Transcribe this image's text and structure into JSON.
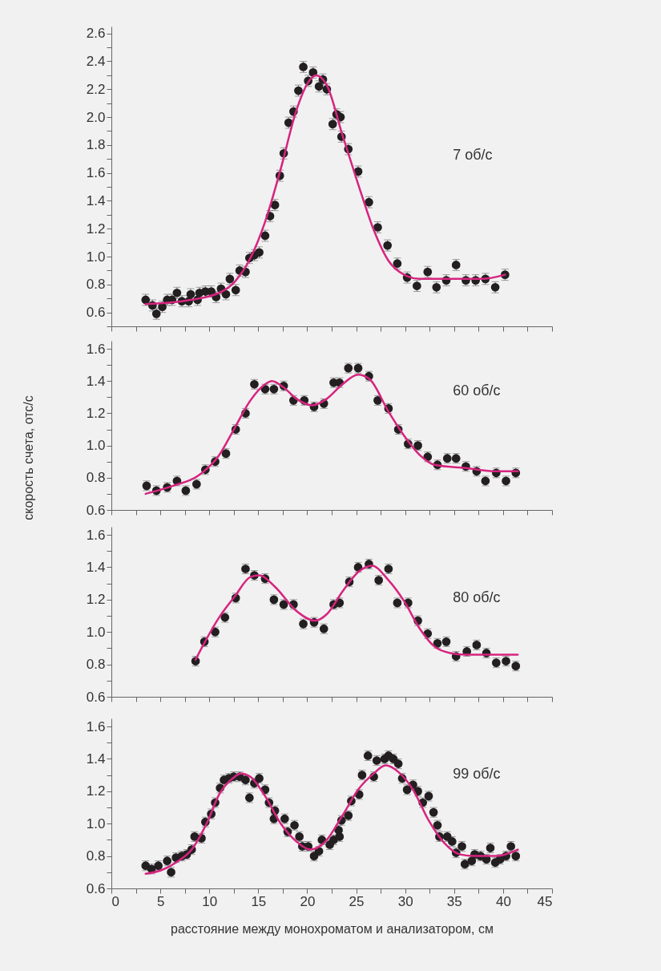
{
  "chart_data": [
    {
      "type": "scatter",
      "annotations": [
        "7 об/с"
      ],
      "tick_labels": "y",
      "xlim": [
        0,
        45
      ],
      "ylim": [
        0.5,
        2.65
      ],
      "xticks": [
        0,
        {
          "value": 2.5,
          "label": null
        },
        5,
        {
          "value": 7.5,
          "label": null
        },
        10,
        {
          "value": 12.5,
          "label": null
        },
        15,
        {
          "value": 17.5,
          "label": null
        },
        20,
        {
          "value": 22.5,
          "label": null
        },
        25,
        {
          "value": 27.5,
          "label": null
        },
        30,
        {
          "value": 32.5,
          "label": null
        },
        35,
        {
          "value": 37.5,
          "label": null
        },
        40,
        {
          "value": 42.5,
          "label": null
        },
        45
      ],
      "yticks": [
        {
          "value": 0.5,
          "label": null
        },
        0.6,
        {
          "value": 0.7,
          "label": null
        },
        0.8,
        {
          "value": 0.9,
          "label": null
        },
        {
          "value": 1,
          "label": "1.0"
        },
        {
          "value": 1.1,
          "label": null
        },
        1.2,
        {
          "value": 1.3,
          "label": null
        },
        1.4,
        {
          "value": 1.5,
          "label": null
        },
        1.6,
        {
          "value": 1.7,
          "label": null
        },
        1.8,
        {
          "value": 1.9,
          "label": null
        },
        {
          "value": 2,
          "label": "2.0"
        },
        {
          "value": 2.1,
          "label": null
        },
        2.2,
        {
          "value": 2.3,
          "label": null
        },
        2.4,
        {
          "value": 2.5,
          "label": null
        },
        2.6
      ],
      "series": [
        {
          "type": "scatter",
          "marker": "circle",
          "color": "#231f20",
          "x": [
            3.5,
            4.2,
            4.6,
            5.2,
            5.7,
            6.2,
            6.7,
            7.2,
            7.9,
            8.1,
            8.8,
            9.0,
            9.6,
            10.2,
            10.7,
            11.2,
            11.7,
            12.1,
            12.7,
            13.1,
            13.7,
            14.1,
            14.6,
            15.1,
            15.7,
            16.2,
            16.7,
            17.2,
            17.6,
            18.1,
            18.6,
            19.1,
            19.6,
            20.1,
            20.6,
            21.2,
            21.6,
            22.0,
            22.6,
            23.0,
            23.4,
            23.5,
            24.2,
            25.2,
            26.3,
            27.2,
            28.2,
            29.2,
            30.2,
            31.2,
            32.3,
            33.2,
            34.2,
            35.2,
            36.2,
            37.2,
            38.2,
            39.2,
            40.2
          ],
          "values": [
            0.69,
            0.65,
            0.59,
            0.64,
            0.69,
            0.69,
            0.74,
            0.68,
            0.68,
            0.73,
            0.69,
            0.74,
            0.75,
            0.75,
            0.71,
            0.77,
            0.73,
            0.84,
            0.76,
            0.9,
            0.89,
            0.99,
            1.01,
            1.03,
            1.15,
            1.29,
            1.37,
            1.58,
            1.74,
            1.96,
            2.04,
            2.19,
            2.36,
            2.26,
            2.32,
            2.22,
            2.27,
            2.2,
            1.95,
            2.02,
            2.0,
            1.86,
            1.77,
            1.61,
            1.39,
            1.21,
            1.08,
            0.95,
            0.85,
            0.79,
            0.89,
            0.78,
            0.83,
            0.94,
            0.83,
            0.83,
            0.84,
            0.78,
            0.87
          ],
          "errors": [
            0.04,
            0.04,
            0.04,
            0.04,
            0.04,
            0.04,
            0.04,
            0.04,
            0.04,
            0.04,
            0.04,
            0.04,
            0.04,
            0.04,
            0.04,
            0.04,
            0.04,
            0.04,
            0.04,
            0.04,
            0.04,
            0.04,
            0.04,
            0.04,
            0.04,
            0.04,
            0.04,
            0.04,
            0.04,
            0.04,
            0.04,
            0.04,
            0.04,
            0.04,
            0.04,
            0.04,
            0.04,
            0.04,
            0.04,
            0.04,
            0.04,
            0.04,
            0.04,
            0.04,
            0.04,
            0.04,
            0.04,
            0.04,
            0.04,
            0.04,
            0.04,
            0.04,
            0.04,
            0.04,
            0.04,
            0.04,
            0.04,
            0.04,
            0.04
          ]
        },
        {
          "type": "line",
          "color": "#d6247f",
          "x": [
            3.5,
            7.2,
            11.0,
            12.6,
            14.2,
            15.7,
            17.3,
            18.9,
            20.1,
            20.9,
            22.0,
            23.6,
            25.2,
            26.8,
            28.3,
            29.9,
            31.5,
            34.6,
            37.8,
            40.2
          ],
          "values": [
            0.66,
            0.68,
            0.74,
            0.82,
            0.99,
            1.25,
            1.63,
            2.05,
            2.25,
            2.3,
            2.23,
            1.87,
            1.52,
            1.19,
            0.97,
            0.87,
            0.84,
            0.84,
            0.84,
            0.87
          ]
        }
      ]
    },
    {
      "type": "scatter",
      "annotations": [
        "60 об/с"
      ],
      "ylabel": "скорость счета, отс/с",
      "tick_labels": "y",
      "xlim": [
        0,
        45
      ],
      "ylim": [
        0.6,
        1.65
      ],
      "xticks": [
        0,
        {
          "value": 2.5,
          "label": null
        },
        5,
        {
          "value": 7.5,
          "label": null
        },
        10,
        {
          "value": 12.5,
          "label": null
        },
        15,
        {
          "value": 17.5,
          "label": null
        },
        20,
        {
          "value": 22.5,
          "label": null
        },
        25,
        {
          "value": 27.5,
          "label": null
        },
        30,
        {
          "value": 32.5,
          "label": null
        },
        35,
        {
          "value": 37.5,
          "label": null
        },
        40,
        {
          "value": 42.5,
          "label": null
        },
        45
      ],
      "yticks": [
        0.6,
        {
          "value": 0.7,
          "label": null
        },
        0.8,
        {
          "value": 0.9,
          "label": null
        },
        {
          "value": 1,
          "label": "1.0"
        },
        {
          "value": 1.1,
          "label": null
        },
        1.2,
        {
          "value": 1.3,
          "label": null
        },
        1.4,
        {
          "value": 1.5,
          "label": null
        },
        1.6
      ],
      "series": [
        {
          "type": "scatter",
          "marker": "circle",
          "color": "#231f20",
          "x": [
            3.6,
            4.6,
            5.7,
            6.7,
            7.6,
            8.7,
            9.6,
            10.6,
            11.7,
            12.7,
            13.7,
            14.6,
            15.7,
            16.6,
            17.6,
            18.6,
            19.7,
            20.7,
            21.7,
            22.7,
            23.3,
            24.2,
            25.2,
            26.3,
            27.2,
            28.3,
            29.3,
            30.3,
            31.3,
            32.3,
            33.3,
            34.3,
            35.2,
            36.2,
            37.3,
            38.2,
            39.3,
            40.3,
            41.3
          ],
          "values": [
            0.75,
            0.72,
            0.74,
            0.78,
            0.72,
            0.76,
            0.85,
            0.9,
            0.95,
            1.1,
            1.2,
            1.38,
            1.35,
            1.35,
            1.37,
            1.28,
            1.28,
            1.24,
            1.26,
            1.39,
            1.39,
            1.48,
            1.48,
            1.43,
            1.28,
            1.23,
            1.1,
            1.01,
            1.0,
            0.93,
            0.88,
            0.92,
            0.92,
            0.87,
            0.84,
            0.78,
            0.83,
            0.78,
            0.83
          ],
          "errors": [
            0.03,
            0.03,
            0.03,
            0.03,
            0.03,
            0.03,
            0.03,
            0.03,
            0.03,
            0.03,
            0.03,
            0.03,
            0.03,
            0.03,
            0.03,
            0.03,
            0.03,
            0.03,
            0.03,
            0.03,
            0.03,
            0.03,
            0.03,
            0.03,
            0.03,
            0.03,
            0.03,
            0.03,
            0.03,
            0.03,
            0.03,
            0.03,
            0.03,
            0.03,
            0.03,
            0.03,
            0.03,
            0.03,
            0.03
          ]
        },
        {
          "type": "line",
          "color": "#d6247f",
          "x": [
            3.5,
            6.3,
            8.8,
            11.0,
            12.6,
            14.2,
            15.7,
            16.4,
            17.6,
            18.9,
            20.5,
            22.0,
            23.6,
            25.2,
            26.4,
            28.3,
            29.9,
            31.5,
            33.0,
            36.2,
            39.3,
            41.5
          ],
          "values": [
            0.7,
            0.75,
            0.81,
            0.94,
            1.11,
            1.28,
            1.38,
            1.4,
            1.36,
            1.29,
            1.25,
            1.29,
            1.38,
            1.44,
            1.41,
            1.21,
            1.06,
            0.94,
            0.88,
            0.86,
            0.84,
            0.84
          ]
        }
      ]
    },
    {
      "type": "scatter",
      "annotations": [
        "80 об/с"
      ],
      "tick_labels": "y",
      "xlim": [
        0,
        45
      ],
      "ylim": [
        0.6,
        1.65
      ],
      "xticks": [
        0,
        {
          "value": 2.5,
          "label": null
        },
        5,
        {
          "value": 7.5,
          "label": null
        },
        10,
        {
          "value": 12.5,
          "label": null
        },
        15,
        {
          "value": 17.5,
          "label": null
        },
        20,
        {
          "value": 22.5,
          "label": null
        },
        25,
        {
          "value": 27.5,
          "label": null
        },
        30,
        {
          "value": 32.5,
          "label": null
        },
        35,
        {
          "value": 37.5,
          "label": null
        },
        40,
        {
          "value": 42.5,
          "label": null
        },
        45
      ],
      "yticks": [
        0.6,
        {
          "value": 0.7,
          "label": null
        },
        0.8,
        {
          "value": 0.9,
          "label": null
        },
        {
          "value": 1,
          "label": "1.0"
        },
        {
          "value": 1.1,
          "label": null
        },
        1.2,
        {
          "value": 1.3,
          "label": null
        },
        1.4,
        {
          "value": 1.5,
          "label": null
        },
        1.6
      ],
      "series": [
        {
          "type": "scatter",
          "marker": "circle",
          "color": "#231f20",
          "x": [
            8.6,
            9.5,
            10.6,
            11.6,
            12.7,
            13.7,
            14.6,
            15.7,
            16.6,
            17.6,
            18.6,
            19.6,
            20.7,
            21.7,
            22.7,
            23.3,
            24.3,
            25.2,
            26.3,
            27.3,
            28.3,
            29.2,
            30.3,
            31.3,
            32.3,
            33.3,
            34.2,
            35.2,
            36.3,
            37.3,
            38.3,
            39.3,
            40.3,
            41.3
          ],
          "values": [
            0.82,
            0.94,
            1.0,
            1.09,
            1.21,
            1.39,
            1.35,
            1.33,
            1.2,
            1.17,
            1.17,
            1.05,
            1.06,
            1.02,
            1.17,
            1.18,
            1.31,
            1.4,
            1.42,
            1.32,
            1.39,
            1.18,
            1.18,
            1.07,
            0.99,
            0.93,
            0.94,
            0.85,
            0.88,
            0.92,
            0.87,
            0.81,
            0.82,
            0.79
          ],
          "errors": [
            0.03,
            0.03,
            0.03,
            0.03,
            0.03,
            0.03,
            0.03,
            0.03,
            0.03,
            0.03,
            0.03,
            0.03,
            0.03,
            0.03,
            0.03,
            0.03,
            0.03,
            0.03,
            0.03,
            0.03,
            0.03,
            0.03,
            0.03,
            0.03,
            0.03,
            0.03,
            0.03,
            0.03,
            0.03,
            0.03,
            0.03,
            0.03,
            0.03,
            0.03
          ]
        },
        {
          "type": "line",
          "color": "#d6247f",
          "x": [
            8.6,
            11.0,
            12.6,
            14.2,
            15.1,
            16.7,
            18.9,
            20.8,
            22.0,
            23.6,
            25.2,
            26.6,
            28.3,
            29.9,
            31.5,
            33.0,
            34.6,
            36.2,
            41.5
          ],
          "values": [
            0.83,
            1.09,
            1.22,
            1.34,
            1.35,
            1.28,
            1.13,
            1.07,
            1.11,
            1.25,
            1.37,
            1.41,
            1.32,
            1.19,
            1.02,
            0.91,
            0.87,
            0.86,
            0.86
          ]
        }
      ]
    },
    {
      "type": "scatter",
      "annotations": [
        "99 об/с"
      ],
      "xlabel": "расстояние между монохроматом и анализатором, см",
      "xlim": [
        0,
        45
      ],
      "ylim": [
        0.6,
        1.65
      ],
      "xticks": [
        0,
        {
          "value": 2.5,
          "label": null
        },
        5,
        {
          "value": 7.5,
          "label": null
        },
        10,
        {
          "value": 12.5,
          "label": null
        },
        15,
        {
          "value": 17.5,
          "label": null
        },
        20,
        {
          "value": 22.5,
          "label": null
        },
        25,
        {
          "value": 27.5,
          "label": null
        },
        30,
        {
          "value": 32.5,
          "label": null
        },
        35,
        {
          "value": 37.5,
          "label": null
        },
        40,
        {
          "value": 42.5,
          "label": null
        },
        45
      ],
      "yticks": [
        0.6,
        {
          "value": 0.7,
          "label": null
        },
        0.8,
        {
          "value": 0.9,
          "label": null
        },
        {
          "value": 1,
          "label": "1.0"
        },
        {
          "value": 1.1,
          "label": null
        },
        1.2,
        {
          "value": 1.3,
          "label": null
        },
        1.4,
        {
          "value": 1.5,
          "label": null
        },
        1.6
      ],
      "series": [
        {
          "type": "scatter",
          "marker": "circle",
          "color": "#231f20",
          "x": [
            3.5,
            4.1,
            4.8,
            5.7,
            6.1,
            6.6,
            7.2,
            7.7,
            8.2,
            8.5,
            9.2,
            9.6,
            10.2,
            10.6,
            11.1,
            11.5,
            12.0,
            12.5,
            13.1,
            13.7,
            14.1,
            14.6,
            15.1,
            15.7,
            16.1,
            16.6,
            16.7,
            17.7,
            18.0,
            18.7,
            19.2,
            19.5,
            20.1,
            20.7,
            21.2,
            21.5,
            22.3,
            22.7,
            23.2,
            23.3,
            23.5,
            24.2,
            24.5,
            25.3,
            25.6,
            26.2,
            26.8,
            27.1,
            27.9,
            28.3,
            28.8,
            29.3,
            29.7,
            30.2,
            30.8,
            31.3,
            31.8,
            32.4,
            32.9,
            33.3,
            33.5,
            34.3,
            34.8,
            35.2,
            35.8,
            36.1,
            36.8,
            37.1,
            37.7,
            38.3,
            38.7,
            39.2,
            39.7,
            40.3,
            40.8,
            41.3
          ],
          "values": [
            0.74,
            0.72,
            0.74,
            0.77,
            0.7,
            0.79,
            0.8,
            0.81,
            0.84,
            0.92,
            0.91,
            1.01,
            1.06,
            1.13,
            1.22,
            1.27,
            1.28,
            1.29,
            1.29,
            1.27,
            1.16,
            1.25,
            1.28,
            1.21,
            1.13,
            1.03,
            1.08,
            1.03,
            0.95,
            0.99,
            0.92,
            0.86,
            0.86,
            0.8,
            0.83,
            0.9,
            0.87,
            0.9,
            0.96,
            0.92,
            1.02,
            1.05,
            1.14,
            1.18,
            1.3,
            1.42,
            1.29,
            1.39,
            1.4,
            1.42,
            1.4,
            1.37,
            1.28,
            1.21,
            1.24,
            1.2,
            1.13,
            1.17,
            1.07,
            0.99,
            0.92,
            0.92,
            0.89,
            0.82,
            0.86,
            0.75,
            0.77,
            0.81,
            0.8,
            0.78,
            0.85,
            0.76,
            0.78,
            0.8,
            0.86,
            0.8
          ],
          "errors": [
            0.03,
            0.03,
            0.03,
            0.03,
            0.03,
            0.03,
            0.03,
            0.03,
            0.03,
            0.03,
            0.03,
            0.03,
            0.03,
            0.03,
            0.03,
            0.03,
            0.03,
            0.03,
            0.03,
            0.03,
            0.03,
            0.03,
            0.03,
            0.03,
            0.03,
            0.03,
            0.03,
            0.03,
            0.03,
            0.03,
            0.03,
            0.03,
            0.03,
            0.03,
            0.03,
            0.03,
            0.03,
            0.03,
            0.03,
            0.03,
            0.03,
            0.03,
            0.03,
            0.03,
            0.03,
            0.03,
            0.03,
            0.03,
            0.03,
            0.03,
            0.03,
            0.03,
            0.03,
            0.03,
            0.03,
            0.03,
            0.03,
            0.03,
            0.03,
            0.03,
            0.03,
            0.03,
            0.03,
            0.03,
            0.03,
            0.03,
            0.03,
            0.03,
            0.03,
            0.03,
            0.03,
            0.03,
            0.03,
            0.03,
            0.03,
            0.03
          ]
        },
        {
          "type": "line",
          "color": "#d6247f",
          "x": [
            3.5,
            5.0,
            6.6,
            8.2,
            9.8,
            11.0,
            12.6,
            13.2,
            14.2,
            15.7,
            17.3,
            18.9,
            20.3,
            21.7,
            23.6,
            25.2,
            26.8,
            28.0,
            29.3,
            30.8,
            32.4,
            34.0,
            35.6,
            37.1,
            39.3,
            41.5
          ],
          "values": [
            0.69,
            0.71,
            0.76,
            0.84,
            1.01,
            1.18,
            1.29,
            1.31,
            1.29,
            1.17,
            1.0,
            0.89,
            0.84,
            0.88,
            1.05,
            1.21,
            1.31,
            1.36,
            1.32,
            1.21,
            1.02,
            0.88,
            0.81,
            0.8,
            0.8,
            0.84
          ]
        }
      ]
    }
  ]
}
